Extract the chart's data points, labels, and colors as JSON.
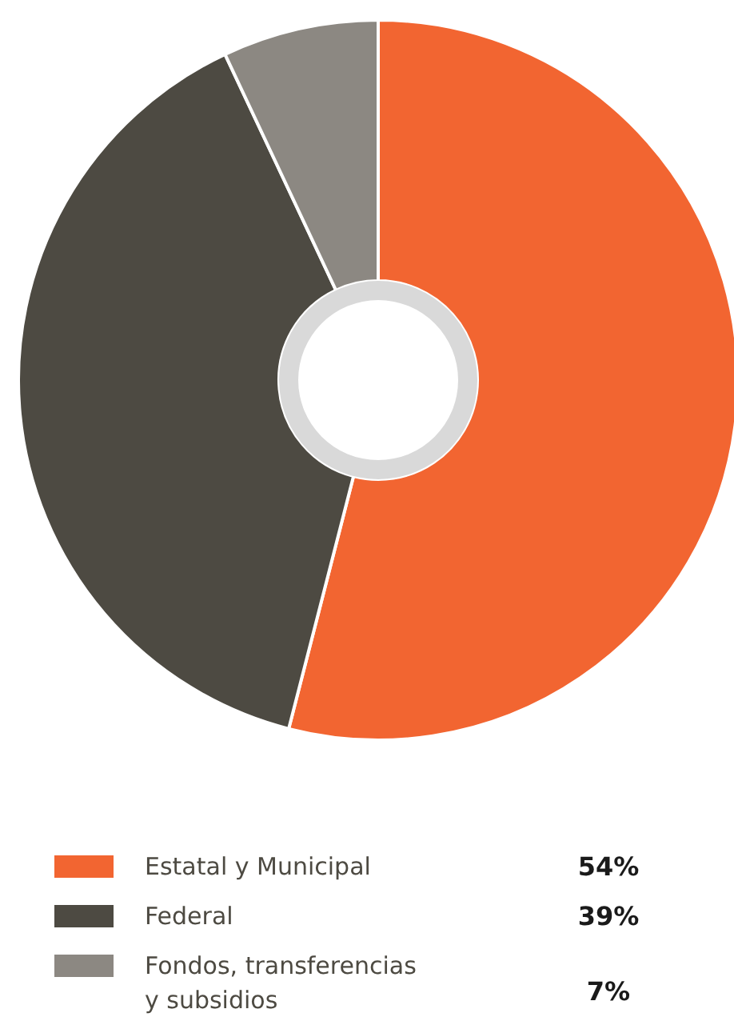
{
  "chart_data": {
    "type": "donut",
    "categories": [
      "Estatal y Municipal",
      "Federal",
      "Fondos, transferencias y subsidios"
    ],
    "values": [
      54,
      39,
      7
    ],
    "colors": [
      "#f26531",
      "#4d4a42",
      "#8c8882"
    ],
    "value_labels": [
      "54%",
      "39%",
      "7%"
    ],
    "legend": "bottom"
  }
}
